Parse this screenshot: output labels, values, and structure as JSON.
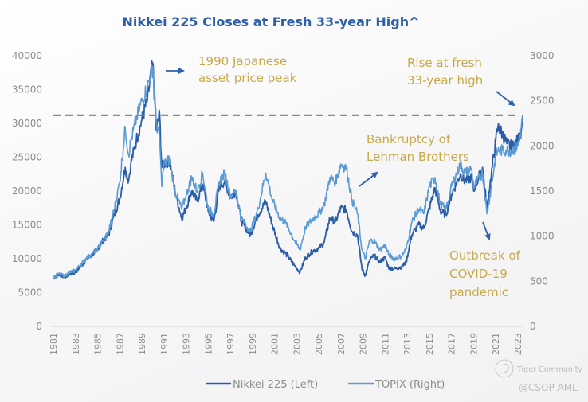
{
  "chart_data": {
    "type": "line",
    "title": "Nikkei 225 Closes at Fresh 33-year High^",
    "xlabel": "",
    "ylabel_left": "",
    "ylabel_right": "",
    "x_range": [
      1981,
      2023.5
    ],
    "ylim_left": [
      0,
      40000
    ],
    "ylim_right": [
      0,
      3000
    ],
    "left_ticks": [
      "0",
      "5000",
      "10000",
      "15000",
      "20000",
      "25000",
      "30000",
      "35000",
      "40000"
    ],
    "right_ticks": [
      "0",
      "500",
      "1000",
      "1500",
      "2000",
      "2500",
      "3000"
    ],
    "x_ticks": [
      "1981",
      "1983",
      "1985",
      "1987",
      "1989",
      "1991",
      "1993",
      "1995",
      "1997",
      "1999",
      "2001",
      "2003",
      "2005",
      "2007",
      "2009",
      "2011",
      "2013",
      "2015",
      "2017",
      "2019",
      "2021",
      "2023"
    ],
    "grid": false,
    "legend_position": "bottom",
    "series": [
      {
        "name": "Nikkei 225 (Left)",
        "axis": "left",
        "color": "#2a5ca8",
        "x": [
          1981.0,
          1981.5,
          1982.0,
          1982.5,
          1983.0,
          1983.5,
          1984.0,
          1984.5,
          1985.0,
          1985.5,
          1986.0,
          1986.5,
          1987.0,
          1987.5,
          1987.8,
          1988.0,
          1988.5,
          1989.0,
          1989.5,
          1989.99,
          1990.3,
          1990.6,
          1990.8,
          1991.0,
          1991.5,
          1992.0,
          1992.6,
          1993.0,
          1993.5,
          1994.0,
          1994.5,
          1995.0,
          1995.5,
          1996.0,
          1996.5,
          1997.0,
          1997.5,
          1998.0,
          1998.8,
          1999.5,
          2000.2,
          2000.8,
          2001.5,
          2002.0,
          2002.8,
          2003.3,
          2003.8,
          2004.5,
          2005.0,
          2005.5,
          2006.0,
          2006.5,
          2007.0,
          2007.5,
          2008.0,
          2008.5,
          2008.9,
          2009.2,
          2009.6,
          2010.0,
          2010.5,
          2011.0,
          2011.3,
          2011.8,
          2012.5,
          2012.9,
          2013.4,
          2014.0,
          2014.5,
          2015.0,
          2015.5,
          2016.0,
          2016.5,
          2017.0,
          2017.8,
          2018.2,
          2018.8,
          2019.0,
          2019.8,
          2020.2,
          2020.6,
          2021.0,
          2021.2,
          2021.6,
          2022.0,
          2022.5,
          2023.0,
          2023.3,
          2023.45
        ],
        "values": [
          7100,
          7600,
          7300,
          7700,
          8000,
          8900,
          9900,
          10500,
          11500,
          12700,
          13500,
          16500,
          18800,
          23500,
          21500,
          24000,
          27500,
          30500,
          33500,
          38900,
          29000,
          31500,
          23500,
          24000,
          24500,
          20000,
          16000,
          17500,
          20000,
          18500,
          21000,
          17000,
          15500,
          20500,
          21500,
          19000,
          20000,
          15500,
          13500,
          16500,
          18500,
          15000,
          11500,
          10800,
          9000,
          8000,
          10200,
          11200,
          11500,
          12500,
          16000,
          15500,
          17500,
          17200,
          14000,
          13500,
          8500,
          7500,
          9800,
          10500,
          9500,
          10200,
          8700,
          8500,
          8800,
          9500,
          13500,
          15000,
          14500,
          17500,
          20500,
          17000,
          16500,
          19500,
          22500,
          21500,
          22000,
          20000,
          23500,
          17500,
          22500,
          27500,
          29500,
          28500,
          27000,
          26500,
          27500,
          29000,
          31200
        ]
      },
      {
        "name": "TOPIX (Right)",
        "axis": "right",
        "color": "#5b9bd5",
        "x": [
          1981.0,
          1981.5,
          1982.0,
          1982.5,
          1983.0,
          1983.5,
          1984.0,
          1984.5,
          1985.0,
          1985.5,
          1986.0,
          1986.5,
          1987.0,
          1987.5,
          1987.8,
          1988.0,
          1988.5,
          1989.0,
          1989.5,
          1989.99,
          1990.3,
          1990.6,
          1990.8,
          1991.0,
          1991.5,
          1992.0,
          1992.6,
          1993.0,
          1993.5,
          1994.0,
          1994.5,
          1995.0,
          1995.5,
          1996.0,
          1996.5,
          1997.0,
          1997.5,
          1998.0,
          1998.8,
          1999.5,
          2000.2,
          2000.8,
          2001.5,
          2002.0,
          2002.8,
          2003.3,
          2003.8,
          2004.5,
          2005.0,
          2005.5,
          2006.0,
          2006.5,
          2007.0,
          2007.5,
          2008.0,
          2008.5,
          2008.9,
          2009.2,
          2009.6,
          2010.0,
          2010.5,
          2011.0,
          2011.3,
          2011.8,
          2012.5,
          2012.9,
          2013.4,
          2014.0,
          2014.5,
          2015.0,
          2015.5,
          2016.0,
          2016.5,
          2017.0,
          2017.8,
          2018.2,
          2018.8,
          2019.0,
          2019.8,
          2020.2,
          2020.6,
          2021.0,
          2021.2,
          2021.6,
          2022.0,
          2022.5,
          2023.0,
          2023.3,
          2023.45
        ],
        "values": [
          540,
          580,
          560,
          600,
          620,
          690,
          760,
          800,
          860,
          950,
          1050,
          1300,
          1600,
          2200,
          1900,
          2050,
          2300,
          2500,
          2650,
          2880,
          2250,
          2100,
          1550,
          1800,
          1850,
          1500,
          1300,
          1450,
          1650,
          1500,
          1700,
          1300,
          1250,
          1600,
          1700,
          1450,
          1500,
          1200,
          1050,
          1300,
          1700,
          1400,
          1200,
          1150,
          950,
          850,
          1100,
          1200,
          1250,
          1350,
          1650,
          1600,
          1800,
          1750,
          1400,
          1250,
          850,
          750,
          950,
          950,
          850,
          900,
          800,
          750,
          780,
          860,
          1150,
          1300,
          1250,
          1550,
          1650,
          1350,
          1300,
          1550,
          1800,
          1700,
          1750,
          1550,
          1700,
          1250,
          1550,
          1900,
          1950,
          1950,
          1950,
          1950,
          2000,
          2200,
          2340
        ]
      }
    ],
    "reference_line": {
      "axis": "left",
      "value": 31200,
      "style": "dashed",
      "color": "#7f7f7f"
    },
    "annotations": [
      {
        "text": [
          "1990 Japanese",
          "asset price peak"
        ],
        "arrow": "right"
      },
      {
        "text": [
          "Rise at fresh",
          "33-year high"
        ],
        "arrow": "down-right"
      },
      {
        "text": [
          "Bankruptcy of",
          "Lehman Brothers"
        ],
        "arrow": "up-right"
      },
      {
        "text": [
          "Outbreak of",
          "COVID-19",
          "pandemic"
        ],
        "arrow": "down"
      }
    ],
    "annotation_color": "#c8a94a",
    "arrow_color": "#2e5fa8"
  },
  "legend": {
    "items": [
      {
        "label": "Nikkei 225 (Left)",
        "color": "#2a5ca8"
      },
      {
        "label": "TOPIX (Right)",
        "color": "#5b9bd5"
      }
    ]
  },
  "watermark": {
    "brand": "Tiger Community",
    "handle": "@CSOP AML"
  }
}
